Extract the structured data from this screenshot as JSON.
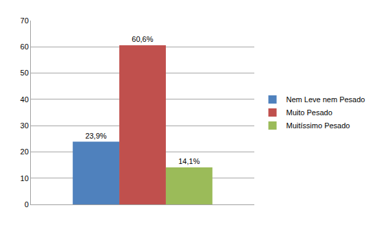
{
  "chart_data": {
    "type": "bar",
    "categories": [
      null
    ],
    "series": [
      {
        "name": "Nem Leve nem Pesado",
        "color": "#4f81bd",
        "values": [
          23.9
        ],
        "value_labels": [
          "23,9%"
        ]
      },
      {
        "name": "Muito Pesado",
        "color": "#c0504d",
        "values": [
          60.6
        ],
        "value_labels": [
          "60,6%"
        ]
      },
      {
        "name": "Muitíssimo Pesado",
        "color": "#9bbb59",
        "values": [
          14.1
        ],
        "value_labels": [
          "14,1%"
        ]
      }
    ],
    "ylim": [
      0,
      70
    ],
    "yticks": [
      0,
      10,
      20,
      30,
      40,
      50,
      60,
      70
    ],
    "grid": true,
    "legend": "right",
    "data_labels": true,
    "tick_labels": "y"
  }
}
